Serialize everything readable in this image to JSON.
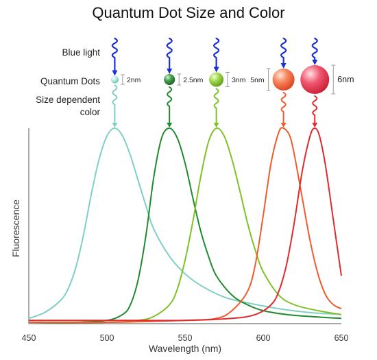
{
  "chart_data": {
    "type": "line",
    "title": "Quantum Dot Size and Color",
    "xlabel": "Wavelength (nm)",
    "ylabel": "Fluorescence",
    "xlim": [
      450,
      650
    ],
    "ylim": [
      0,
      1
    ],
    "x_ticks": [
      450,
      500,
      550,
      600,
      650
    ],
    "grid": false,
    "row_labels": {
      "light": "Blue light",
      "dots": "Quantum Dots",
      "color_line1": "Size dependent",
      "color_line2": "color"
    },
    "series": [
      {
        "size_label": "2nm",
        "color": "#7fcfc4",
        "x": [
          450,
          460,
          470,
          475,
          480,
          485,
          490,
          495,
          500,
          505,
          510,
          515,
          520,
          525,
          530,
          540,
          550,
          560,
          575,
          590,
          610,
          630,
          650
        ],
        "y": [
          0.02,
          0.05,
          0.11,
          0.17,
          0.28,
          0.45,
          0.66,
          0.84,
          0.96,
          1.0,
          0.96,
          0.86,
          0.73,
          0.6,
          0.48,
          0.34,
          0.25,
          0.19,
          0.13,
          0.1,
          0.07,
          0.05,
          0.04
        ]
      },
      {
        "size_label": "2.5nm",
        "color": "#1f8a2e",
        "x": [
          450,
          480,
          500,
          510,
          515,
          520,
          525,
          530,
          535,
          540,
          545,
          550,
          555,
          560,
          565,
          570,
          580,
          590,
          600,
          615,
          630,
          650
        ],
        "y": [
          0.0,
          0.0,
          0.01,
          0.04,
          0.09,
          0.22,
          0.45,
          0.75,
          0.95,
          1.0,
          0.95,
          0.82,
          0.64,
          0.47,
          0.34,
          0.24,
          0.14,
          0.09,
          0.06,
          0.04,
          0.03,
          0.02
        ]
      },
      {
        "size_label": "3nm",
        "color": "#7fc225",
        "x": [
          450,
          500,
          520,
          530,
          540,
          545,
          550,
          555,
          560,
          565,
          570,
          575,
          580,
          585,
          590,
          595,
          600,
          610,
          620,
          635,
          650
        ],
        "y": [
          0.0,
          0.0,
          0.01,
          0.03,
          0.09,
          0.17,
          0.32,
          0.52,
          0.75,
          0.93,
          1.0,
          0.96,
          0.84,
          0.68,
          0.51,
          0.37,
          0.26,
          0.14,
          0.09,
          0.06,
          0.04
        ]
      },
      {
        "size_label": "5nm",
        "color": "#f05a2c",
        "x": [
          450,
          500,
          550,
          570,
          580,
          590,
          595,
          600,
          605,
          610,
          613,
          617,
          620,
          625,
          630,
          635,
          640,
          645,
          650
        ],
        "y": [
          0.0,
          0.0,
          0.01,
          0.02,
          0.06,
          0.16,
          0.3,
          0.55,
          0.82,
          0.98,
          1.0,
          0.96,
          0.86,
          0.64,
          0.42,
          0.25,
          0.14,
          0.09,
          0.07
        ]
      },
      {
        "size_label": "6nm",
        "color": "#e02a2e",
        "x": [
          450,
          500,
          550,
          580,
          595,
          605,
          610,
          615,
          620,
          625,
          630,
          633,
          636,
          640,
          645,
          650
        ],
        "y": [
          0.01,
          0.01,
          0.01,
          0.02,
          0.04,
          0.09,
          0.16,
          0.3,
          0.52,
          0.78,
          0.96,
          1.0,
          0.96,
          0.8,
          0.52,
          0.24
        ]
      }
    ]
  }
}
